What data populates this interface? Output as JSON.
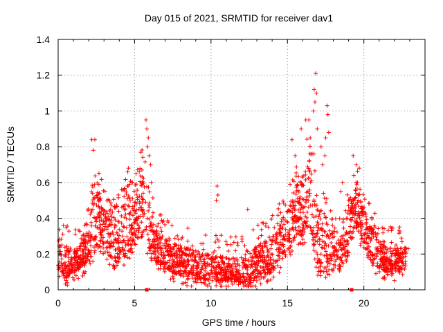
{
  "chart_data": {
    "type": "scatter",
    "title": "Day 015 of 2021, SRMTID for receiver dav1",
    "xlabel": "GPS time / hours",
    "ylabel": "SRMTID / TECUs",
    "xlim": [
      0,
      24
    ],
    "ylim": [
      0,
      1.4
    ],
    "x_ticks": [
      "0",
      "5",
      "10",
      "15",
      "20"
    ],
    "y_ticks": [
      "0",
      "0.2",
      "0.4",
      "0.6",
      "0.8",
      "1",
      "1.2",
      "1.4"
    ],
    "grid": true,
    "marker": "plus",
    "color": "#ff0000",
    "series": [
      {
        "name": "SRMTID",
        "envelope": [
          [
            0.0,
            0.13,
            0.28
          ],
          [
            0.5,
            0.05,
            0.25
          ],
          [
            1.0,
            0.1,
            0.22
          ],
          [
            1.5,
            0.12,
            0.25
          ],
          [
            2.0,
            0.15,
            0.35
          ],
          [
            2.3,
            0.2,
            0.6
          ],
          [
            2.5,
            0.25,
            0.6
          ],
          [
            3.0,
            0.25,
            0.45
          ],
          [
            3.5,
            0.15,
            0.4
          ],
          [
            4.0,
            0.15,
            0.45
          ],
          [
            4.5,
            0.2,
            0.55
          ],
          [
            5.0,
            0.25,
            0.5
          ],
          [
            5.5,
            0.35,
            0.7
          ],
          [
            6.0,
            0.2,
            0.45
          ],
          [
            6.5,
            0.15,
            0.32
          ],
          [
            7.0,
            0.12,
            0.3
          ],
          [
            8.0,
            0.08,
            0.25
          ],
          [
            9.0,
            0.06,
            0.22
          ],
          [
            10.0,
            0.05,
            0.2
          ],
          [
            11.0,
            0.05,
            0.18
          ],
          [
            12.0,
            0.04,
            0.18
          ],
          [
            12.5,
            0.03,
            0.18
          ],
          [
            13.0,
            0.06,
            0.25
          ],
          [
            14.0,
            0.1,
            0.3
          ],
          [
            15.0,
            0.2,
            0.45
          ],
          [
            15.5,
            0.3,
            0.6
          ],
          [
            16.0,
            0.3,
            0.65
          ],
          [
            16.5,
            0.35,
            0.8
          ],
          [
            17.0,
            0.1,
            0.5
          ],
          [
            17.5,
            0.1,
            0.4
          ],
          [
            18.0,
            0.1,
            0.35
          ],
          [
            18.5,
            0.1,
            0.3
          ],
          [
            19.0,
            0.25,
            0.45
          ],
          [
            19.5,
            0.35,
            0.6
          ],
          [
            20.0,
            0.25,
            0.45
          ],
          [
            20.5,
            0.15,
            0.35
          ],
          [
            21.0,
            0.12,
            0.28
          ],
          [
            21.5,
            0.1,
            0.25
          ],
          [
            22.0,
            0.1,
            0.22
          ],
          [
            22.5,
            0.12,
            0.25
          ],
          [
            22.8,
            0.15,
            0.25
          ]
        ],
        "outliers": [
          [
            2.2,
            0.84
          ],
          [
            2.4,
            0.84
          ],
          [
            2.3,
            0.78
          ],
          [
            4.6,
            0.68
          ],
          [
            5.1,
            0.65
          ],
          [
            5.75,
            0.95
          ],
          [
            5.8,
            0.9
          ],
          [
            5.9,
            0.85
          ],
          [
            5.85,
            0.8
          ],
          [
            5.95,
            0.75
          ],
          [
            6.05,
            0.7
          ],
          [
            6.1,
            0.6
          ],
          [
            10.4,
            0.58
          ],
          [
            10.45,
            0.53
          ],
          [
            10.35,
            0.5
          ],
          [
            12.4,
            0.45
          ],
          [
            15.3,
            0.84
          ],
          [
            15.5,
            0.75
          ],
          [
            15.9,
            0.9
          ],
          [
            16.2,
            0.95
          ],
          [
            16.4,
            0.95
          ],
          [
            16.7,
            1.0
          ],
          [
            16.75,
            1.12
          ],
          [
            16.85,
            1.21
          ],
          [
            16.8,
            1.05
          ],
          [
            16.9,
            1.1
          ],
          [
            16.95,
            0.9
          ],
          [
            17.2,
            0.8
          ],
          [
            17.5,
            0.85
          ],
          [
            17.6,
            1.03
          ],
          [
            17.65,
            0.98
          ],
          [
            17.7,
            0.88
          ],
          [
            17.45,
            0.75
          ],
          [
            17.3,
            0.7
          ],
          [
            18.5,
            0.55
          ],
          [
            18.6,
            0.6
          ],
          [
            19.3,
            0.75
          ],
          [
            19.5,
            0.7
          ],
          [
            19.7,
            0.68
          ],
          [
            22.9,
            0.23
          ]
        ],
        "marked_x": [
          5.8,
          19.2
        ]
      }
    ]
  }
}
